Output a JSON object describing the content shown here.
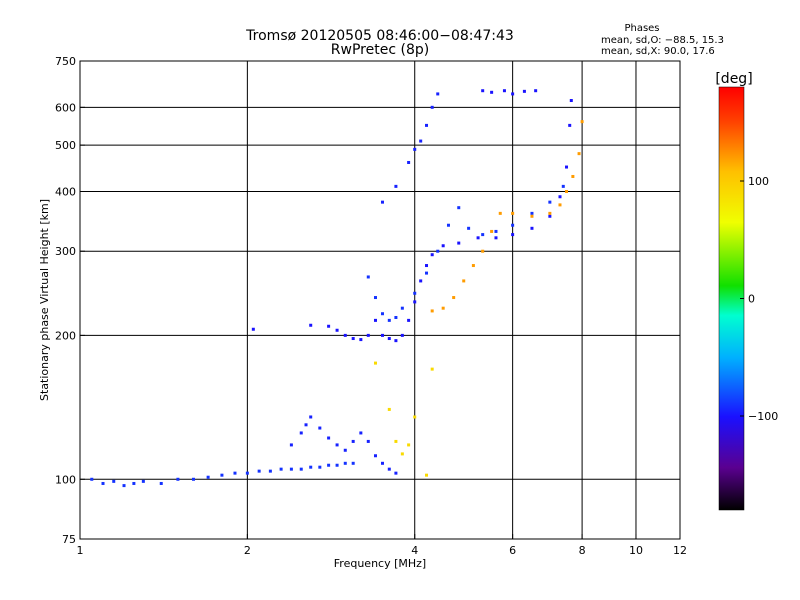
{
  "chart_data": {
    "type": "scatter",
    "title": "Tromsø 20120505 08:46:00−08:47:43",
    "subtitle": "RwPretec (8p)",
    "xlabel": "Frequency [MHz]",
    "ylabel": "Stationary phase Virtual Height [km]",
    "x_scale": "log",
    "y_scale": "log",
    "xlim": [
      1,
      12
    ],
    "ylim": [
      75,
      750
    ],
    "grid": true,
    "x_ticks": [
      1,
      2,
      4,
      6,
      8,
      10,
      12
    ],
    "x_tick_labels": [
      "1",
      "2",
      "4",
      "6",
      "8",
      "10",
      "12"
    ],
    "y_ticks": [
      75,
      100,
      200,
      300,
      400,
      500,
      600,
      750
    ],
    "y_tick_labels": [
      "75",
      "100",
      "200",
      "300",
      "400",
      "500",
      "600",
      "750"
    ],
    "annotation": {
      "heading": "Phases",
      "line1": "mean, sd,O: −88.5, 15.3",
      "line2": "mean, sd,X:  90.0, 17.6"
    },
    "colorbar": {
      "label": "[deg]",
      "range": [
        -180,
        180
      ],
      "ticks": [
        100,
        0,
        -100
      ],
      "tick_labels": [
        "100",
        "0",
        "−100"
      ]
    },
    "traces": [
      {
        "phase": -90,
        "points": [
          [
            1.05,
            100
          ],
          [
            1.1,
            98
          ],
          [
            1.15,
            99
          ],
          [
            1.2,
            97
          ],
          [
            1.25,
            98
          ],
          [
            1.3,
            99
          ],
          [
            1.4,
            98
          ],
          [
            1.5,
            100
          ],
          [
            1.6,
            100
          ],
          [
            1.7,
            101
          ],
          [
            1.8,
            102
          ],
          [
            1.9,
            103
          ],
          [
            2.0,
            103
          ],
          [
            2.1,
            104
          ],
          [
            2.2,
            104
          ],
          [
            2.3,
            105
          ],
          [
            2.4,
            105
          ],
          [
            2.5,
            105
          ],
          [
            2.6,
            106
          ],
          [
            2.7,
            106
          ],
          [
            2.8,
            107
          ],
          [
            2.9,
            107
          ],
          [
            3.0,
            108
          ],
          [
            3.1,
            108
          ]
        ]
      },
      {
        "phase": -95,
        "points": [
          [
            2.4,
            118
          ],
          [
            2.5,
            125
          ],
          [
            2.55,
            130
          ],
          [
            2.6,
            135
          ],
          [
            2.7,
            128
          ],
          [
            2.8,
            122
          ],
          [
            2.9,
            118
          ],
          [
            3.0,
            115
          ],
          [
            3.1,
            120
          ],
          [
            3.2,
            125
          ],
          [
            3.3,
            120
          ],
          [
            3.4,
            112
          ],
          [
            3.5,
            108
          ],
          [
            3.6,
            105
          ],
          [
            3.7,
            103
          ]
        ]
      },
      {
        "phase": -100,
        "points": [
          [
            2.05,
            206
          ],
          [
            2.6,
            210
          ],
          [
            2.8,
            209
          ],
          [
            2.9,
            205
          ],
          [
            3.0,
            200
          ],
          [
            3.1,
            197
          ],
          [
            3.2,
            196
          ],
          [
            3.3,
            200
          ],
          [
            3.4,
            215
          ],
          [
            3.5,
            200
          ],
          [
            3.6,
            197
          ],
          [
            3.7,
            195
          ],
          [
            3.8,
            200
          ],
          [
            3.9,
            215
          ],
          [
            4.0,
            235
          ],
          [
            4.1,
            260
          ],
          [
            4.2,
            280
          ],
          [
            4.3,
            295
          ],
          [
            4.5,
            308
          ],
          [
            4.8,
            312
          ],
          [
            5.2,
            320
          ],
          [
            5.6,
            320
          ],
          [
            6.0,
            325
          ],
          [
            6.5,
            335
          ],
          [
            7.0,
            355
          ],
          [
            7.3,
            390
          ],
          [
            7.5,
            450
          ],
          [
            7.6,
            550
          ],
          [
            7.65,
            620
          ]
        ]
      },
      {
        "phase": -90,
        "points": [
          [
            3.3,
            265
          ],
          [
            3.4,
            240
          ],
          [
            3.5,
            222
          ],
          [
            3.6,
            215
          ],
          [
            3.7,
            218
          ],
          [
            3.8,
            228
          ],
          [
            4.0,
            245
          ],
          [
            4.2,
            270
          ],
          [
            4.4,
            300
          ],
          [
            4.6,
            340
          ],
          [
            4.8,
            370
          ],
          [
            5.0,
            335
          ],
          [
            5.3,
            325
          ],
          [
            5.6,
            330
          ],
          [
            6.0,
            340
          ],
          [
            6.5,
            360
          ],
          [
            7.0,
            380
          ],
          [
            7.4,
            410
          ]
        ]
      },
      {
        "phase": -95,
        "points": [
          [
            3.5,
            380
          ],
          [
            3.7,
            410
          ],
          [
            3.9,
            460
          ],
          [
            4.0,
            490
          ],
          [
            4.1,
            510
          ],
          [
            4.2,
            550
          ],
          [
            4.3,
            600
          ],
          [
            4.4,
            640
          ]
        ]
      },
      {
        "phase": -100,
        "points": [
          [
            5.3,
            650
          ],
          [
            5.5,
            645
          ],
          [
            5.8,
            650
          ],
          [
            6.0,
            640
          ],
          [
            6.3,
            648
          ],
          [
            6.6,
            650
          ]
        ]
      },
      {
        "phase": 120,
        "points": [
          [
            4.3,
            225
          ],
          [
            4.5,
            228
          ],
          [
            4.7,
            240
          ],
          [
            4.9,
            260
          ],
          [
            5.1,
            280
          ],
          [
            5.3,
            300
          ],
          [
            5.5,
            330
          ],
          [
            5.7,
            360
          ],
          [
            6.0,
            360
          ],
          [
            6.5,
            355
          ],
          [
            7.0,
            360
          ],
          [
            7.3,
            375
          ],
          [
            7.5,
            400
          ],
          [
            7.7,
            430
          ],
          [
            7.9,
            480
          ],
          [
            8.0,
            560
          ]
        ]
      },
      {
        "phase": 90,
        "points": [
          [
            3.4,
            175
          ],
          [
            3.6,
            140
          ],
          [
            3.7,
            120
          ],
          [
            3.8,
            113
          ],
          [
            3.9,
            118
          ],
          [
            4.0,
            135
          ],
          [
            4.2,
            102
          ],
          [
            4.3,
            170
          ]
        ]
      }
    ]
  }
}
